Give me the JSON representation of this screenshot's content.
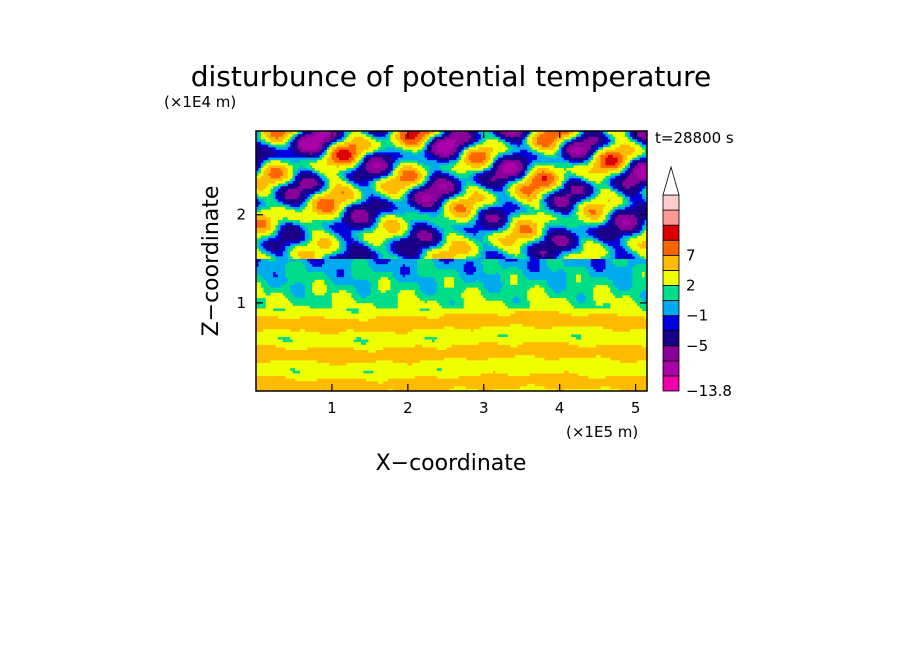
{
  "chart_data": {
    "type": "heatmap",
    "title": "disturbunce of potential temperature",
    "time_label": "t=28800 s",
    "xlabel": "X−coordinate",
    "ylabel": "Z−coordinate",
    "x_unit": "(×1E5 m)",
    "y_unit": "(×1E4 m)",
    "xlim": [
      0,
      5.15
    ],
    "ylim": [
      0,
      2.95
    ],
    "x_ticks": [
      {
        "value": 1,
        "label": "1"
      },
      {
        "value": 2,
        "label": "2"
      },
      {
        "value": 3,
        "label": "3"
      },
      {
        "value": 4,
        "label": "4"
      },
      {
        "value": 5,
        "label": "5"
      }
    ],
    "y_ticks": [
      {
        "value": 1,
        "label": "1"
      },
      {
        "value": 2,
        "label": "2"
      }
    ],
    "colorbar": {
      "levels": [
        {
          "color": "#ee00aa",
          "label": "−13.8"
        },
        {
          "color": "#aa00aa",
          "label": ""
        },
        {
          "color": "#880099",
          "label": ""
        },
        {
          "color": "#1a0088",
          "label": "−5"
        },
        {
          "color": "#0000dd",
          "label": ""
        },
        {
          "color": "#00aaee",
          "label": "−1"
        },
        {
          "color": "#00dd88",
          "label": ""
        },
        {
          "color": "#eeff00",
          "label": "2"
        },
        {
          "color": "#ffbb00",
          "label": ""
        },
        {
          "color": "#ff6600",
          "label": "7"
        },
        {
          "color": "#dd0000",
          "label": ""
        },
        {
          "color": "#ff9999",
          "label": ""
        },
        {
          "color": "#ffcccc",
          "label": ""
        }
      ],
      "extend_top": true
    },
    "field_description": {
      "lower_layer_z": [
        0,
        0.95
      ],
      "lower_layer_values": "mostly 2 to 4 (yellow/orange bands)",
      "transition_z": [
        0.95,
        1.5
      ],
      "transition_values": "about -1 to 1 (green, cyan)",
      "upper_layer_z": [
        1.5,
        2.95
      ],
      "upper_layer_values": "wave pattern alternating about -5 (blue) and +5 (orange)"
    }
  }
}
